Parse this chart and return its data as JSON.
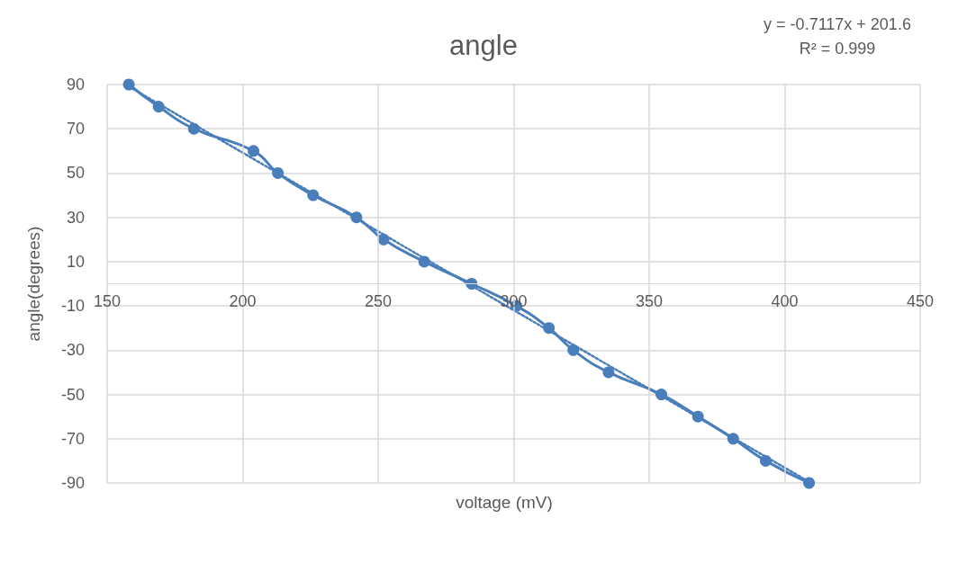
{
  "chart_data": {
    "type": "line",
    "title": "angle",
    "xlabel": "voltage (mV)",
    "ylabel": "angle(degrees)",
    "annotations": [
      "y = -0.7117x + 201.6",
      "R² = 0.999"
    ],
    "xlim": [
      150,
      450
    ],
    "xticks": [
      150,
      200,
      250,
      300,
      350,
      400,
      450
    ],
    "ylim": [
      -90,
      90
    ],
    "yticks": [
      -90,
      -70,
      -50,
      -30,
      -10,
      10,
      30,
      50,
      70,
      90
    ],
    "grid": true,
    "series": [
      {
        "color": "#4a7ebb",
        "marker": "circle",
        "line_style": "solid",
        "x": [
          158,
          169,
          182,
          204,
          213,
          226,
          242,
          252,
          267,
          284.5,
          301,
          313,
          322,
          335,
          354.5,
          368,
          381,
          393,
          409
        ],
        "values": [
          90,
          80,
          70,
          60,
          50,
          40,
          30,
          20,
          10,
          0,
          -10,
          -20,
          -30,
          -40,
          -50,
          -60,
          -70,
          -80,
          -90
        ]
      },
      {
        "color": "#4a7ebb",
        "marker": "none",
        "line_style": "dotted",
        "x": [
          158,
          409
        ],
        "values": [
          89.1,
          -89.5
        ]
      }
    ]
  }
}
